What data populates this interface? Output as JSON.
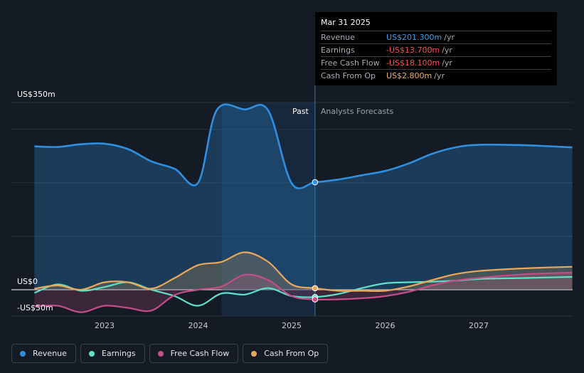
{
  "tooltip": {
    "date": "Mar 31 2025",
    "rows": [
      {
        "label": "Revenue",
        "value": "US$201.300m",
        "unit": "/yr",
        "color": "#3b9eea"
      },
      {
        "label": "Earnings",
        "value": "-US$13.700m",
        "unit": "/yr",
        "color": "#ff4d4d"
      },
      {
        "label": "Free Cash Flow",
        "value": "-US$18.100m",
        "unit": "/yr",
        "color": "#ff4d4d"
      },
      {
        "label": "Cash From Op",
        "value": "US$2.800m",
        "unit": "/yr",
        "color": "#f0b25c"
      }
    ]
  },
  "legend": [
    {
      "label": "Revenue",
      "color": "#2f8fe0"
    },
    {
      "label": "Earnings",
      "color": "#5fe0c8"
    },
    {
      "label": "Free Cash Flow",
      "color": "#c44d8a"
    },
    {
      "label": "Cash From Op",
      "color": "#e9a95c"
    }
  ],
  "chart_data": {
    "type": "line",
    "y_tick_labels": [
      "US$350m",
      "US$0",
      "-US$50m"
    ],
    "ylim": [
      -50,
      350
    ],
    "x_tick_labels": [
      "2023",
      "2024",
      "2025",
      "2026",
      "2027"
    ],
    "past_label": "Past",
    "forecast_label": "Analysts Forecasts",
    "divider_date": 2025.25,
    "series": [
      {
        "name": "Revenue",
        "color": "#2f8fe0",
        "x": [
          2022.25,
          2022.5,
          2022.75,
          2023.0,
          2023.25,
          2023.5,
          2023.75,
          2024.0,
          2024.2,
          2024.5,
          2024.75,
          2025.0,
          2025.25,
          2025.5,
          2025.75,
          2026.0,
          2026.25,
          2026.5,
          2026.75,
          2027.0,
          2027.5,
          2028.0
        ],
        "y": [
          268,
          267,
          272,
          273,
          263,
          240,
          226,
          200,
          336,
          337,
          335,
          199,
          201,
          206,
          214,
          222,
          236,
          254,
          266,
          271,
          270,
          266
        ]
      },
      {
        "name": "Earnings",
        "color": "#5fe0c8",
        "x": [
          2022.25,
          2022.5,
          2022.75,
          2023.0,
          2023.25,
          2023.5,
          2023.75,
          2024.0,
          2024.25,
          2024.5,
          2024.75,
          2025.0,
          2025.25,
          2025.5,
          2025.75,
          2026.0,
          2026.25,
          2026.5,
          2026.75,
          2027.0,
          2027.5,
          2028.0
        ],
        "y": [
          -6,
          10,
          -2,
          5,
          14,
          0,
          -12,
          -30,
          -7,
          -9,
          3,
          -12,
          -13.7,
          -8,
          3,
          12,
          14,
          15,
          17,
          20,
          22,
          24
        ]
      },
      {
        "name": "Free Cash Flow",
        "color": "#c44d8a",
        "x": [
          2022.25,
          2022.5,
          2022.75,
          2023.0,
          2023.25,
          2023.5,
          2023.75,
          2024.0,
          2024.25,
          2024.5,
          2024.75,
          2025.0,
          2025.25,
          2025.5,
          2025.75,
          2026.0,
          2026.25,
          2026.5,
          2026.75,
          2027.0,
          2027.5,
          2028.0
        ],
        "y": [
          -31,
          -30,
          -42,
          -30,
          -34,
          -39,
          -10,
          0,
          6,
          28,
          18,
          -12,
          -18.1,
          -18,
          -16,
          -12,
          -4,
          8,
          17,
          22,
          29,
          32
        ]
      },
      {
        "name": "Cash From Op",
        "color": "#e9a95c",
        "x": [
          2022.25,
          2022.5,
          2022.75,
          2023.0,
          2023.25,
          2023.5,
          2023.75,
          2024.0,
          2024.25,
          2024.5,
          2024.75,
          2025.0,
          2025.25,
          2025.5,
          2025.75,
          2026.0,
          2026.25,
          2026.5,
          2026.75,
          2027.0,
          2027.5,
          2028.0
        ],
        "y": [
          2,
          8,
          0,
          14,
          14,
          2,
          22,
          46,
          52,
          70,
          52,
          10,
          2.8,
          -2,
          -2,
          -2,
          6,
          18,
          29,
          35,
          40,
          43
        ]
      }
    ]
  }
}
